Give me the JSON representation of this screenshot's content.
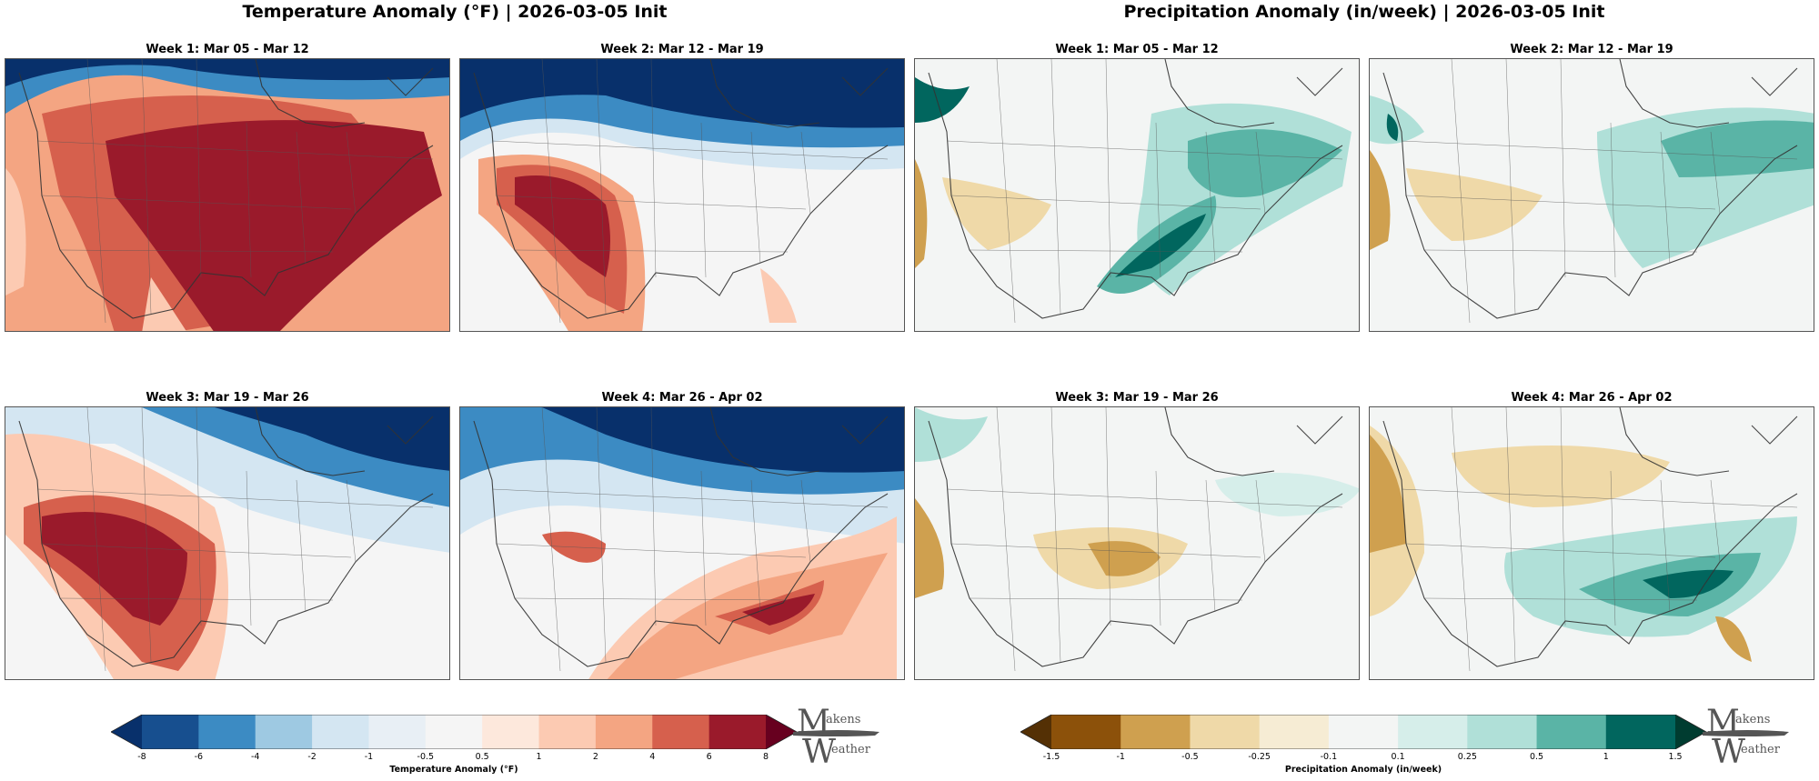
{
  "titles": {
    "temperature": "Temperature Anomaly (°F) | 2026-03-05 Init",
    "precipitation": "Precipitation Anomaly (in/week) | 2026-03-05 Init"
  },
  "temperature_panels": [
    {
      "title": "Week 1: Mar 05 - Mar 12"
    },
    {
      "title": "Week 2: Mar 12 - Mar 19"
    },
    {
      "title": "Week 3: Mar 19 - Mar 26"
    },
    {
      "title": "Week 4: Mar 26 - Apr 02"
    }
  ],
  "precipitation_panels": [
    {
      "title": "Week 1: Mar 05 - Mar 12"
    },
    {
      "title": "Week 2: Mar 12 - Mar 19"
    },
    {
      "title": "Week 3: Mar 19 - Mar 26"
    },
    {
      "title": "Week 4: Mar 26 - Apr 02"
    }
  ],
  "temperature_colorbar": {
    "label": "Temperature Anomaly (°F)",
    "ticks": [
      "-8",
      "-6",
      "-4",
      "-2",
      "-1",
      "-0.5",
      "0.5",
      "1",
      "2",
      "4",
      "6",
      "8"
    ],
    "colors": [
      "#08306b",
      "#174f8f",
      "#3c8bc3",
      "#9ec9e2",
      "#d4e6f2",
      "#e8eff5",
      "#f5f5f5",
      "#fde8dc",
      "#fccab2",
      "#f4a582",
      "#d6604d",
      "#9a1a2b",
      "#67001f"
    ]
  },
  "precipitation_colorbar": {
    "label": "Precipitation Anomaly (in/week)",
    "ticks": [
      "-1.5",
      "-1",
      "-0.5",
      "-0.25",
      "-0.1",
      "0.1",
      "0.25",
      "0.5",
      "1",
      "1.5"
    ],
    "colors": [
      "#543005",
      "#8c510a",
      "#cfa04f",
      "#efd9a8",
      "#f6ecd4",
      "#f3f5f4",
      "#d6eeea",
      "#b0e0d8",
      "#5ab4a6",
      "#01665e",
      "#003c30"
    ]
  },
  "logo": {
    "top": "akens",
    "bottom": "eather",
    "big_top": "M",
    "big_bottom": "W"
  }
}
